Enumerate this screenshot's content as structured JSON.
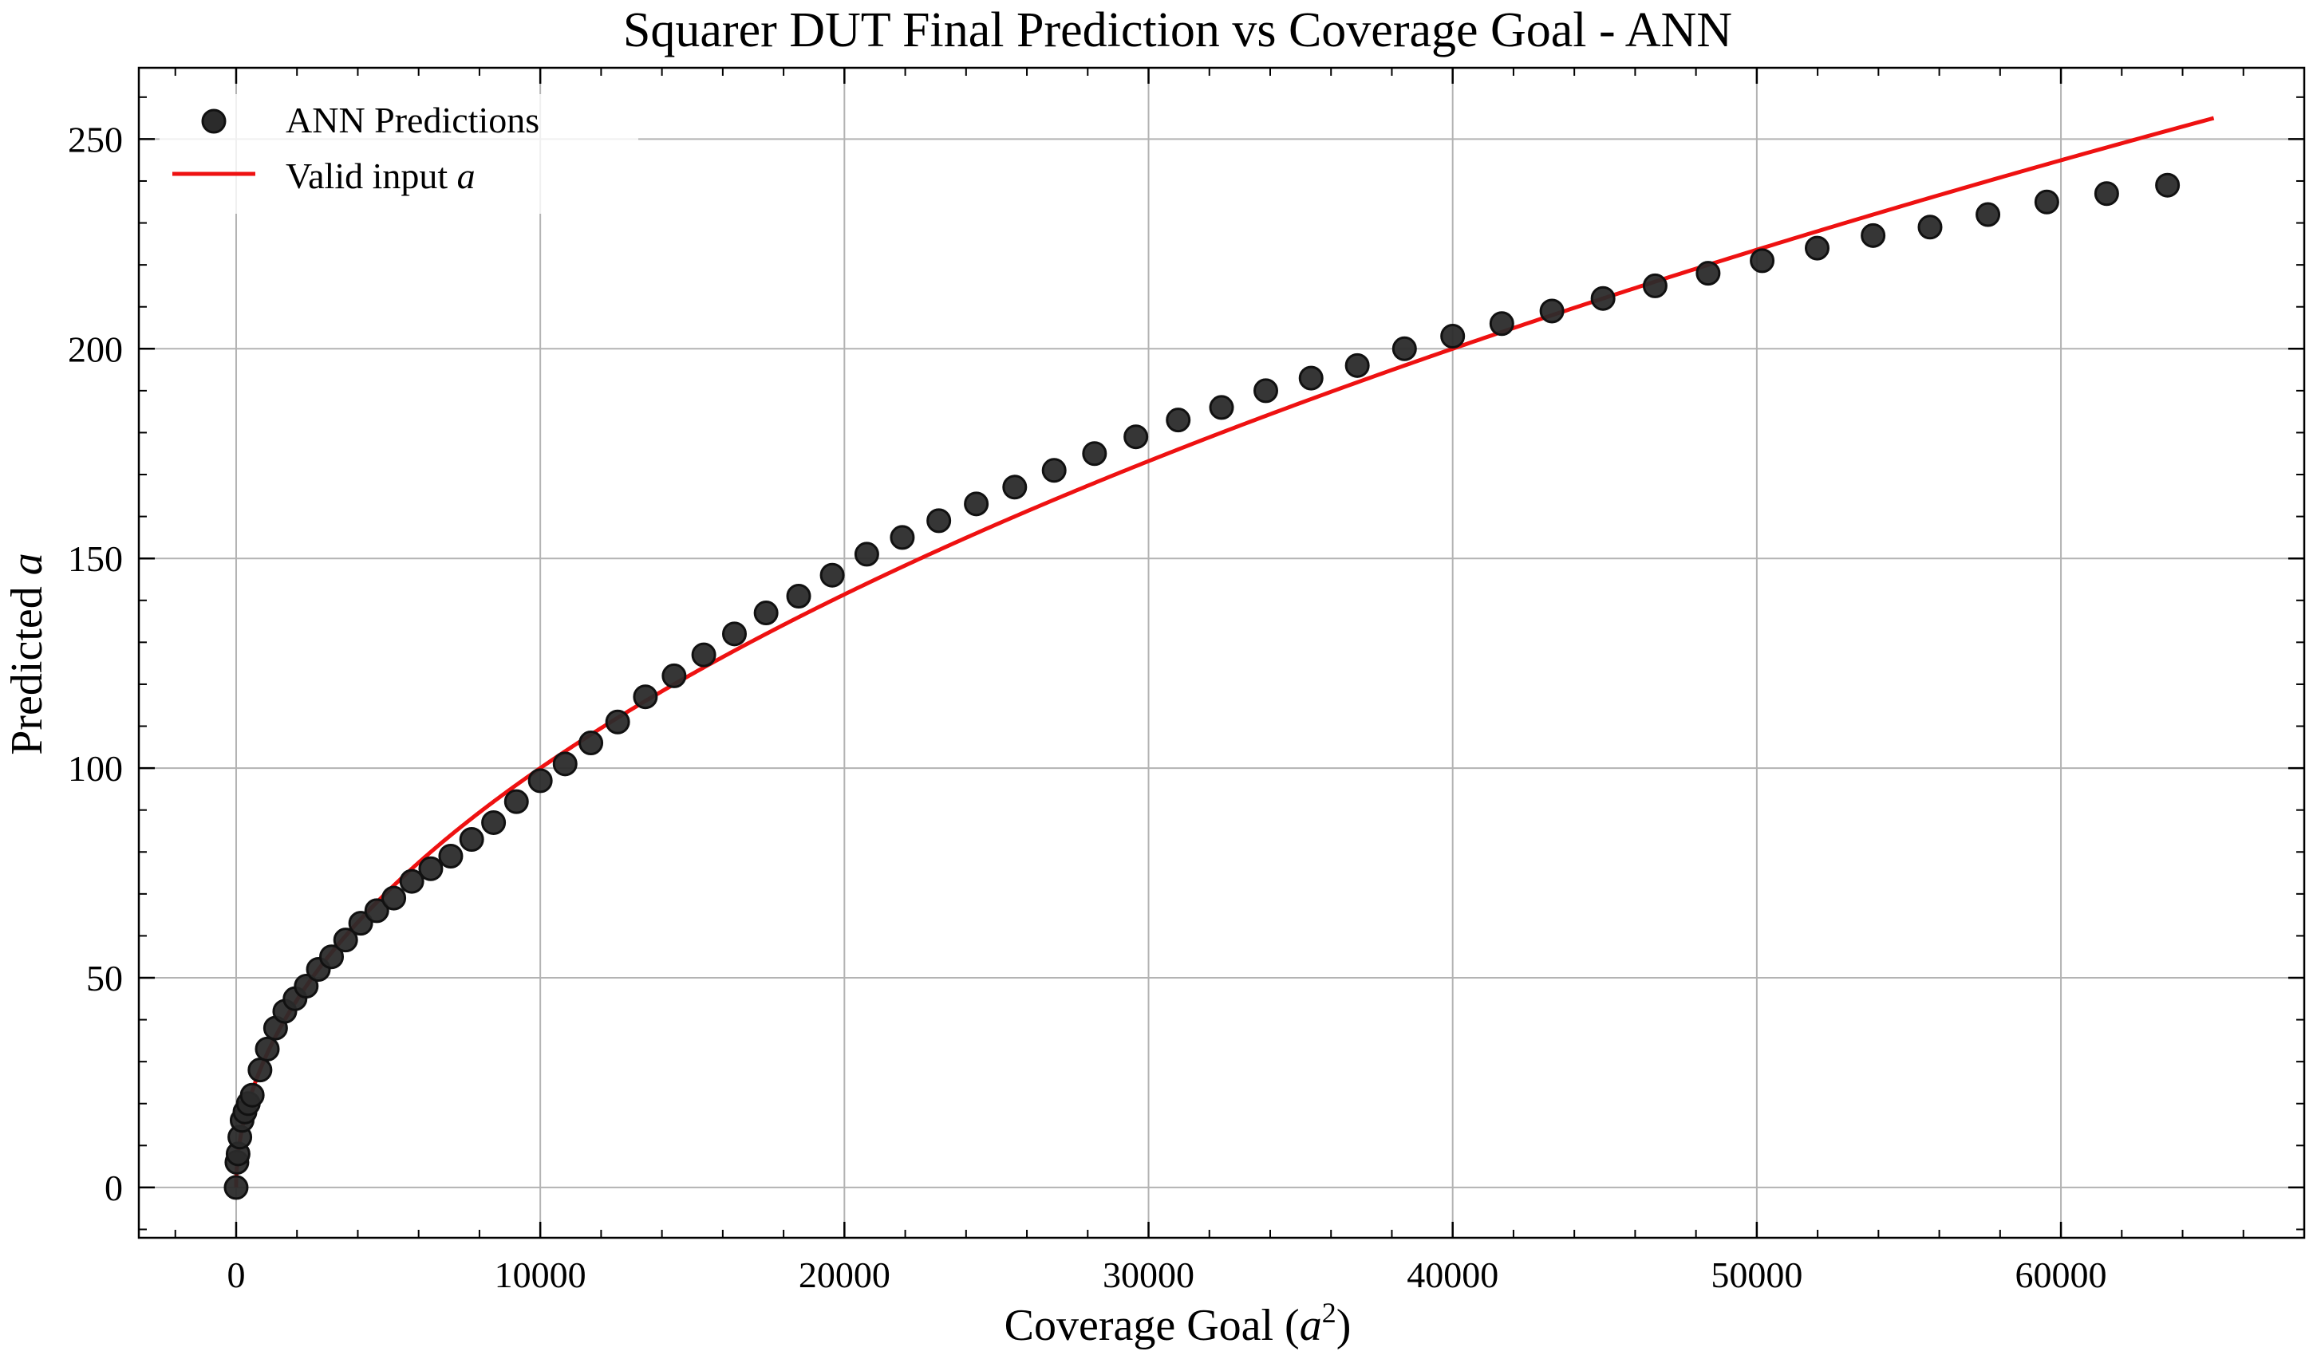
{
  "chart_data": {
    "type": "scatter",
    "title": "Squarer DUT Final Prediction vs Coverage Goal - ANN",
    "xlabel": {
      "text": "Coverage Goal (",
      "var": "a",
      "sup": "2",
      "close": ")"
    },
    "ylabel": {
      "text": "Predicted ",
      "var": "a"
    },
    "xlim": [
      -3200,
      68000
    ],
    "ylim": [
      -12,
      267
    ],
    "x_ticks": [
      0,
      10000,
      20000,
      30000,
      40000,
      50000,
      60000
    ],
    "y_ticks": [
      0,
      50,
      100,
      150,
      200,
      250
    ],
    "grid": true,
    "legend_position": "top-left",
    "series": [
      {
        "name": "ANN Predictions",
        "kind": "scatter",
        "color": "#2b2b2b",
        "points": [
          [
            0,
            0
          ],
          [
            25,
            6
          ],
          [
            64,
            8
          ],
          [
            121,
            12
          ],
          [
            196,
            16
          ],
          [
            289,
            18
          ],
          [
            400,
            20
          ],
          [
            529,
            22
          ],
          [
            784,
            28
          ],
          [
            1024,
            33
          ],
          [
            1296,
            38
          ],
          [
            1600,
            42
          ],
          [
            1936,
            45
          ],
          [
            2304,
            48
          ],
          [
            2704,
            52
          ],
          [
            3136,
            55
          ],
          [
            3600,
            59
          ],
          [
            4096,
            63
          ],
          [
            4624,
            66
          ],
          [
            5184,
            69
          ],
          [
            5776,
            73
          ],
          [
            6400,
            76
          ],
          [
            7056,
            79
          ],
          [
            7744,
            83
          ],
          [
            8464,
            87
          ],
          [
            9216,
            92
          ],
          [
            10000,
            97
          ],
          [
            10816,
            101
          ],
          [
            11664,
            106
          ],
          [
            12544,
            111
          ],
          [
            13456,
            117
          ],
          [
            14400,
            122
          ],
          [
            15376,
            127
          ],
          [
            16384,
            132
          ],
          [
            17424,
            137
          ],
          [
            18496,
            141
          ],
          [
            19600,
            146
          ],
          [
            20736,
            151
          ],
          [
            21904,
            155
          ],
          [
            23104,
            159
          ],
          [
            24336,
            163
          ],
          [
            25600,
            167
          ],
          [
            26896,
            171
          ],
          [
            28224,
            175
          ],
          [
            29584,
            179
          ],
          [
            30976,
            183
          ],
          [
            32400,
            186
          ],
          [
            33856,
            190
          ],
          [
            35344,
            193
          ],
          [
            36864,
            196
          ],
          [
            38416,
            200
          ],
          [
            40000,
            203
          ],
          [
            41616,
            206
          ],
          [
            43264,
            209
          ],
          [
            44944,
            212
          ],
          [
            46656,
            215
          ],
          [
            48400,
            218
          ],
          [
            50176,
            221
          ],
          [
            51984,
            224
          ],
          [
            53824,
            227
          ],
          [
            55696,
            229
          ],
          [
            57600,
            232
          ],
          [
            59536,
            235
          ],
          [
            61504,
            237
          ],
          [
            63504,
            239
          ]
        ]
      },
      {
        "name": "Valid input ",
        "name_var": "a",
        "kind": "line",
        "color": "#ee1111",
        "function": "sqrt",
        "x_range": [
          0,
          65025
        ]
      }
    ]
  }
}
